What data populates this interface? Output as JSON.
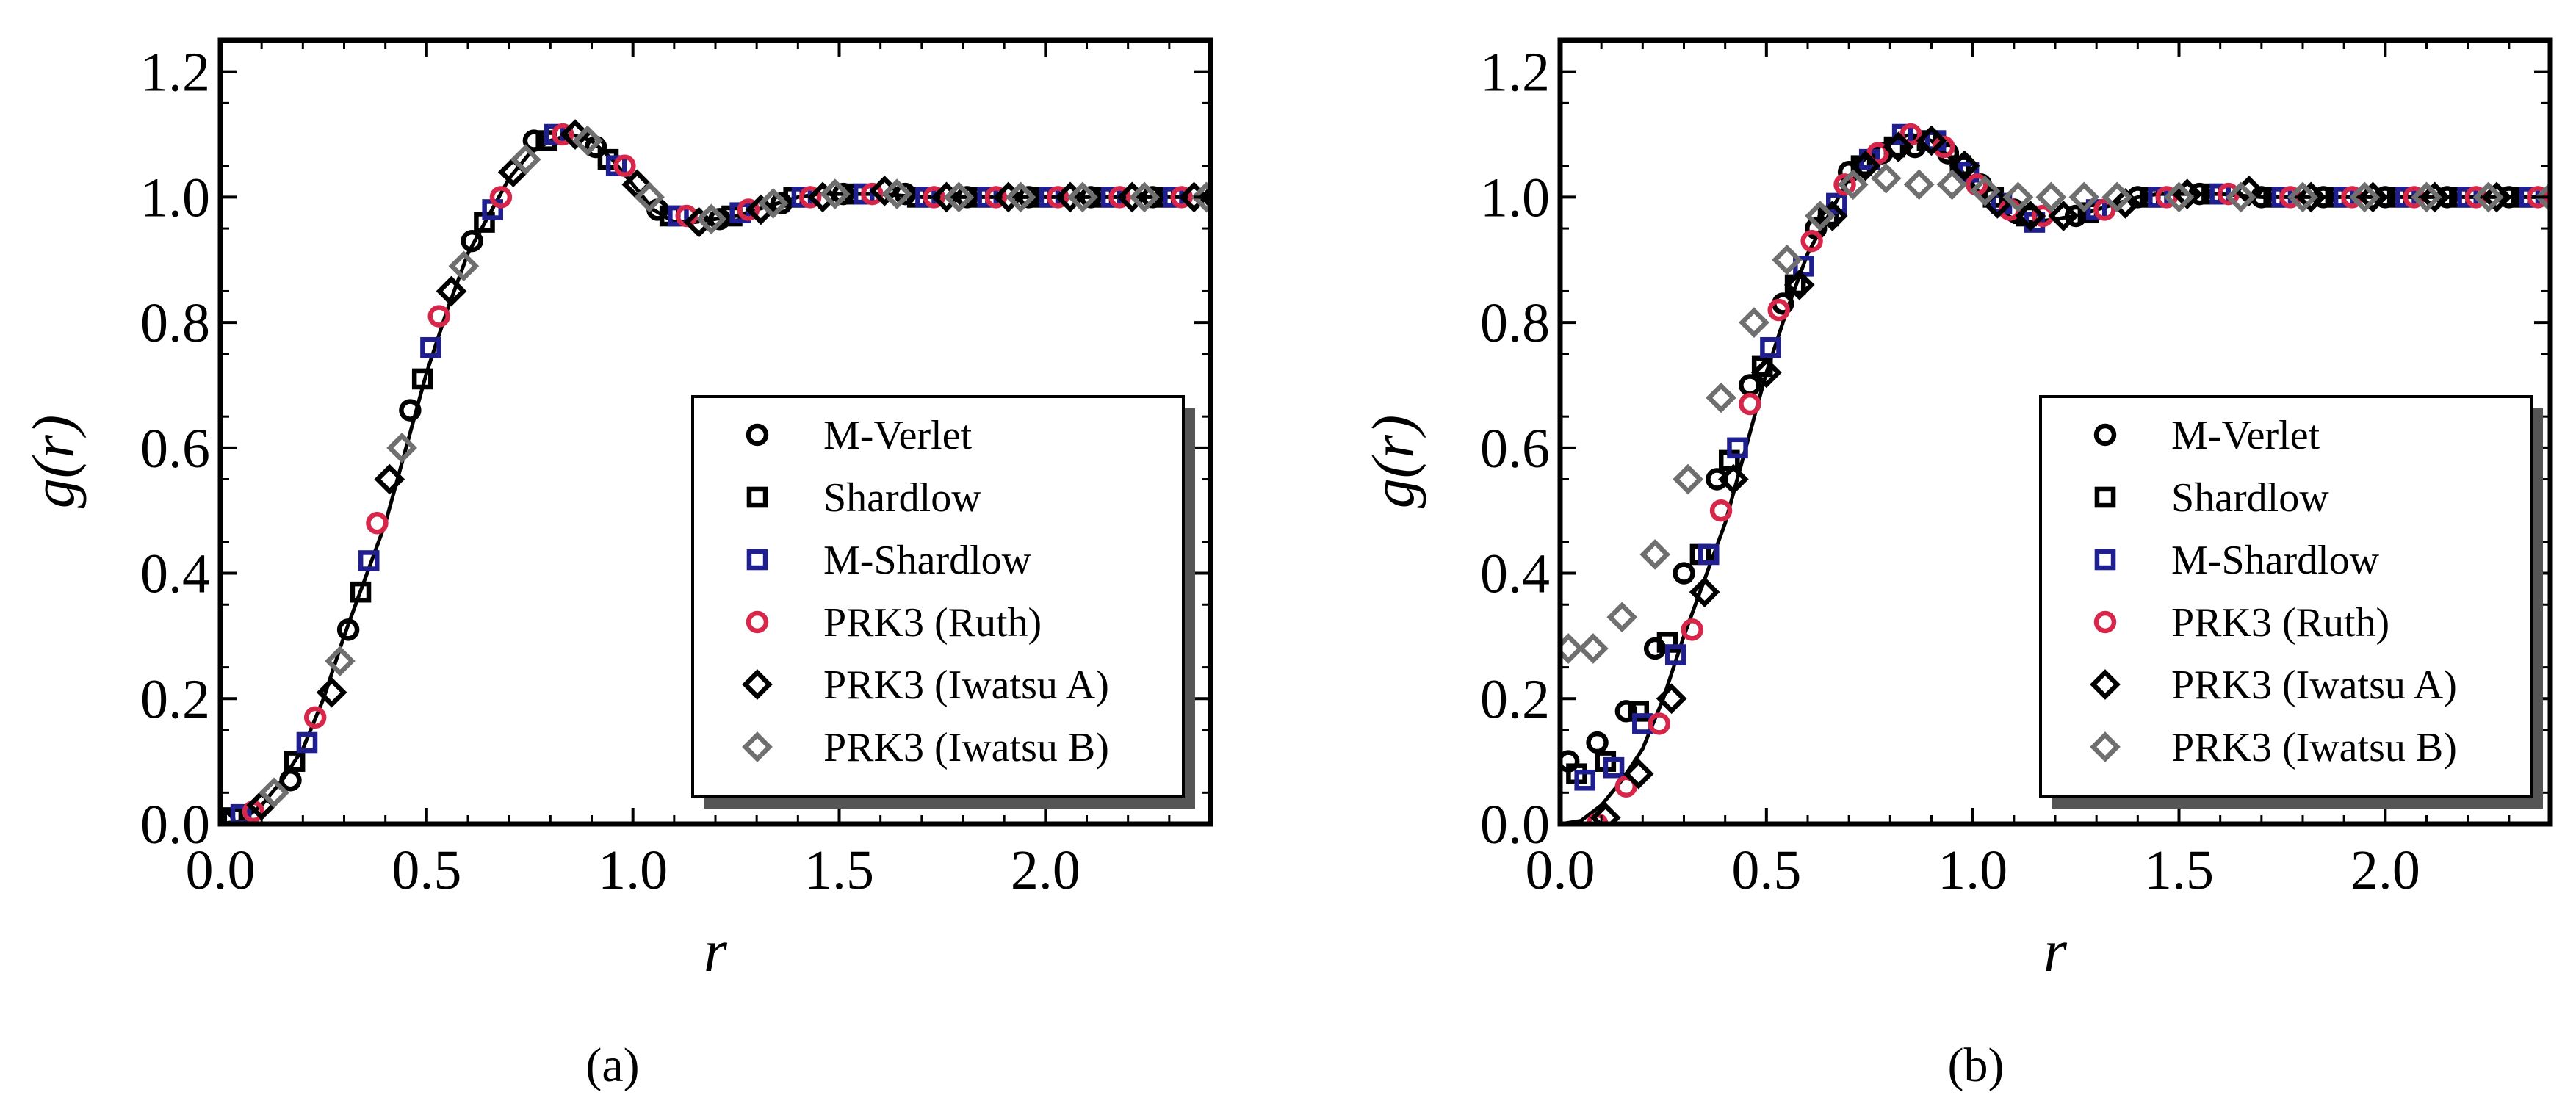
{
  "figure": {
    "captions": [
      "(a)",
      "(b)"
    ]
  },
  "chart_data": [
    {
      "type": "scatter",
      "panel": "a",
      "title": "",
      "xlabel": "r",
      "ylabel": "g(r)",
      "xlim": [
        0.0,
        2.4
      ],
      "ylim": [
        0.0,
        1.25
      ],
      "xticks": [
        0.0,
        0.5,
        1.0,
        1.5,
        2.0
      ],
      "xtick_labels": [
        "0.0",
        "0.5",
        "1.0",
        "1.5",
        "2.0"
      ],
      "yticks": [
        0.0,
        0.2,
        0.4,
        0.6,
        0.8,
        1.0,
        1.2
      ],
      "ytick_labels": [
        "0.0",
        "0.2",
        "0.4",
        "0.6",
        "0.8",
        "1.0",
        "1.2"
      ],
      "legend_position": "center-right",
      "reference_curve": {
        "name": "reference",
        "x": [
          0.0,
          0.05,
          0.1,
          0.15,
          0.2,
          0.25,
          0.3,
          0.35,
          0.4,
          0.45,
          0.5,
          0.55,
          0.6,
          0.65,
          0.7,
          0.75,
          0.8,
          0.85,
          0.9,
          0.95,
          1.0,
          1.05,
          1.1,
          1.15,
          1.2,
          1.25,
          1.3,
          1.35,
          1.4,
          1.45,
          1.5,
          1.6,
          1.7,
          1.8,
          1.9,
          2.0,
          2.1,
          2.2,
          2.3,
          2.4
        ],
        "y": [
          0.0,
          0.005,
          0.03,
          0.07,
          0.12,
          0.2,
          0.3,
          0.39,
          0.48,
          0.6,
          0.72,
          0.82,
          0.91,
          0.97,
          1.03,
          1.07,
          1.09,
          1.1,
          1.09,
          1.06,
          1.02,
          0.98,
          0.96,
          0.96,
          0.965,
          0.97,
          0.98,
          0.99,
          1.0,
          1.005,
          1.005,
          1.005,
          1.0,
          1.0,
          1.0,
          1.0,
          1.0,
          1.0,
          1.0,
          1.0
        ]
      },
      "series": [
        {
          "name": "M-Verlet",
          "marker": "circle",
          "color": "#000000",
          "x": [
            0.01,
            0.17,
            0.31,
            0.46,
            0.61,
            0.76,
            0.91,
            1.06,
            1.21,
            1.36,
            1.51,
            1.66,
            1.81,
            1.96,
            2.11,
            2.26,
            2.41
          ],
          "y": [
            0.005,
            0.07,
            0.31,
            0.66,
            0.93,
            1.09,
            1.08,
            0.98,
            0.965,
            0.99,
            1.005,
            1.005,
            1.0,
            1.0,
            1.0,
            1.0,
            1.0
          ]
        },
        {
          "name": "Shardlow",
          "marker": "square",
          "color": "#000000",
          "x": [
            0.03,
            0.18,
            0.34,
            0.49,
            0.64,
            0.79,
            0.94,
            1.09,
            1.24,
            1.39,
            1.54,
            1.69,
            1.84,
            1.99,
            2.14,
            2.29
          ],
          "y": [
            0.01,
            0.1,
            0.37,
            0.71,
            0.96,
            1.09,
            1.06,
            0.97,
            0.97,
            1.0,
            1.005,
            1.0,
            1.0,
            1.0,
            1.0,
            1.0
          ]
        },
        {
          "name": "M-Shardlow",
          "marker": "square",
          "color": "#1f1f8f",
          "x": [
            0.05,
            0.21,
            0.36,
            0.51,
            0.66,
            0.81,
            0.96,
            1.11,
            1.26,
            1.41,
            1.56,
            1.71,
            1.86,
            2.01,
            2.16,
            2.31
          ],
          "y": [
            0.015,
            0.13,
            0.42,
            0.76,
            0.98,
            1.1,
            1.05,
            0.97,
            0.975,
            1.0,
            1.005,
            1.0,
            1.0,
            1.0,
            1.0,
            1.0
          ]
        },
        {
          "name": "PRK3 (Ruth)",
          "marker": "circle",
          "color": "#d6264a",
          "x": [
            0.08,
            0.23,
            0.38,
            0.53,
            0.68,
            0.83,
            0.98,
            1.13,
            1.28,
            1.43,
            1.58,
            1.73,
            1.88,
            2.03,
            2.18,
            2.33
          ],
          "y": [
            0.02,
            0.17,
            0.48,
            0.81,
            1.0,
            1.1,
            1.05,
            0.97,
            0.98,
            1.0,
            1.005,
            1.0,
            1.0,
            1.0,
            1.0,
            1.0
          ]
        },
        {
          "name": "PRK3 (Iwatsu A)",
          "marker": "diamond",
          "color": "#000000",
          "x": [
            0.1,
            0.27,
            0.41,
            0.56,
            0.71,
            0.86,
            1.01,
            1.16,
            1.31,
            1.46,
            1.61,
            1.76,
            1.91,
            2.06,
            2.21,
            2.36
          ],
          "y": [
            0.03,
            0.21,
            0.55,
            0.85,
            1.04,
            1.1,
            1.02,
            0.96,
            0.98,
            1.0,
            1.01,
            1.0,
            1.0,
            1.0,
            1.0,
            1.0
          ]
        },
        {
          "name": "PRK3 (Iwatsu B)",
          "marker": "diamond",
          "color": "#6f6f6f",
          "x": [
            0.13,
            0.29,
            0.44,
            0.59,
            0.74,
            0.89,
            1.04,
            1.19,
            1.34,
            1.49,
            1.64,
            1.79,
            1.94,
            2.09,
            2.24,
            2.39
          ],
          "y": [
            0.05,
            0.26,
            0.6,
            0.89,
            1.06,
            1.09,
            1.0,
            0.965,
            0.99,
            1.005,
            1.005,
            1.0,
            1.0,
            1.0,
            1.0,
            1.0
          ]
        }
      ]
    },
    {
      "type": "scatter",
      "panel": "b",
      "title": "",
      "xlabel": "r",
      "ylabel": "g(r)",
      "xlim": [
        0.0,
        2.4
      ],
      "ylim": [
        0.0,
        1.25
      ],
      "xticks": [
        0.0,
        0.5,
        1.0,
        1.5,
        2.0
      ],
      "xtick_labels": [
        "0.0",
        "0.5",
        "1.0",
        "1.5",
        "2.0"
      ],
      "yticks": [
        0.0,
        0.2,
        0.4,
        0.6,
        0.8,
        1.0,
        1.2
      ],
      "ytick_labels": [
        "0.0",
        "0.2",
        "0.4",
        "0.6",
        "0.8",
        "1.0",
        "1.2"
      ],
      "legend_position": "center-right",
      "reference_curve": {
        "name": "reference",
        "x": [
          0.0,
          0.05,
          0.1,
          0.15,
          0.2,
          0.25,
          0.3,
          0.35,
          0.4,
          0.45,
          0.5,
          0.55,
          0.6,
          0.65,
          0.7,
          0.75,
          0.8,
          0.85,
          0.9,
          0.95,
          1.0,
          1.05,
          1.1,
          1.15,
          1.2,
          1.25,
          1.3,
          1.35,
          1.4,
          1.45,
          1.5,
          1.6,
          1.7,
          1.8,
          1.9,
          2.0,
          2.1,
          2.2,
          2.3,
          2.4
        ],
        "y": [
          0.0,
          0.005,
          0.03,
          0.07,
          0.12,
          0.2,
          0.3,
          0.39,
          0.48,
          0.6,
          0.72,
          0.82,
          0.91,
          0.97,
          1.03,
          1.07,
          1.09,
          1.1,
          1.09,
          1.06,
          1.02,
          0.98,
          0.96,
          0.96,
          0.965,
          0.97,
          0.98,
          0.99,
          1.0,
          1.005,
          1.005,
          1.005,
          1.0,
          1.0,
          1.0,
          1.0,
          1.0,
          1.0,
          1.0,
          1.0
        ]
      },
      "series": [
        {
          "name": "M-Verlet",
          "marker": "circle",
          "color": "#000000",
          "x": [
            0.02,
            0.09,
            0.16,
            0.23,
            0.3,
            0.38,
            0.46,
            0.54,
            0.62,
            0.7,
            0.78,
            0.86,
            0.94,
            1.02,
            1.1,
            1.25,
            1.4,
            1.55,
            1.7,
            1.85,
            2.0,
            2.15,
            2.3
          ],
          "y": [
            0.1,
            0.13,
            0.18,
            0.28,
            0.4,
            0.55,
            0.7,
            0.83,
            0.95,
            1.04,
            1.07,
            1.08,
            1.07,
            1.02,
            0.98,
            0.97,
            1.0,
            1.005,
            1.0,
            1.0,
            1.0,
            1.0,
            1.0
          ]
        },
        {
          "name": "Shardlow",
          "marker": "square",
          "color": "#000000",
          "x": [
            0.04,
            0.11,
            0.19,
            0.26,
            0.34,
            0.41,
            0.49,
            0.57,
            0.65,
            0.73,
            0.81,
            0.89,
            0.97,
            1.05,
            1.13,
            1.28,
            1.43,
            1.58,
            1.73,
            1.88,
            2.03,
            2.18,
            2.33
          ],
          "y": [
            0.08,
            0.1,
            0.18,
            0.29,
            0.43,
            0.58,
            0.73,
            0.86,
            0.97,
            1.05,
            1.08,
            1.09,
            1.05,
            1.0,
            0.97,
            0.975,
            1.0,
            1.005,
            1.0,
            1.0,
            1.0,
            1.0,
            1.0
          ]
        },
        {
          "name": "M-Shardlow",
          "marker": "square",
          "color": "#1f1f8f",
          "x": [
            0.06,
            0.13,
            0.2,
            0.28,
            0.36,
            0.43,
            0.51,
            0.59,
            0.67,
            0.75,
            0.83,
            0.91,
            0.99,
            1.07,
            1.15,
            1.3,
            1.45,
            1.6,
            1.75,
            1.9,
            2.05,
            2.2,
            2.35
          ],
          "y": [
            0.07,
            0.09,
            0.16,
            0.27,
            0.43,
            0.6,
            0.76,
            0.89,
            0.99,
            1.06,
            1.1,
            1.09,
            1.04,
            0.99,
            0.96,
            0.98,
            1.0,
            1.005,
            1.0,
            1.0,
            1.0,
            1.0,
            1.0
          ]
        },
        {
          "name": "PRK3 (Ruth)",
          "marker": "circle",
          "color": "#d6264a",
          "x": [
            0.09,
            0.16,
            0.24,
            0.32,
            0.39,
            0.46,
            0.53,
            0.61,
            0.69,
            0.77,
            0.85,
            0.93,
            1.01,
            1.09,
            1.17,
            1.32,
            1.47,
            1.62,
            1.77,
            1.92,
            2.07,
            2.22,
            2.37
          ],
          "y": [
            0.0,
            0.06,
            0.16,
            0.31,
            0.5,
            0.67,
            0.82,
            0.93,
            1.02,
            1.07,
            1.1,
            1.08,
            1.02,
            0.98,
            0.97,
            0.98,
            1.0,
            1.005,
            1.0,
            1.0,
            1.0,
            1.0,
            1.0
          ]
        },
        {
          "name": "PRK3 (Iwatsu A)",
          "marker": "diamond",
          "color": "#000000",
          "x": [
            0.11,
            0.19,
            0.27,
            0.35,
            0.42,
            0.5,
            0.58,
            0.66,
            0.74,
            0.82,
            0.9,
            0.98,
            1.06,
            1.14,
            1.22,
            1.37,
            1.52,
            1.67,
            1.82,
            1.97,
            2.12,
            2.27
          ],
          "y": [
            0.01,
            0.08,
            0.2,
            0.37,
            0.55,
            0.72,
            0.86,
            0.97,
            1.05,
            1.08,
            1.09,
            1.05,
            0.99,
            0.97,
            0.97,
            0.99,
            1.005,
            1.01,
            1.0,
            1.0,
            1.0,
            1.0
          ]
        },
        {
          "name": "PRK3 (Iwatsu B)",
          "marker": "diamond",
          "color": "#6f6f6f",
          "x": [
            0.02,
            0.08,
            0.15,
            0.23,
            0.31,
            0.39,
            0.47,
            0.55,
            0.63,
            0.71,
            0.79,
            0.87,
            0.95,
            1.03,
            1.11,
            1.19,
            1.27,
            1.35,
            1.5,
            1.65,
            1.8,
            1.95,
            2.1,
            2.25,
            2.4
          ],
          "y": [
            0.28,
            0.28,
            0.33,
            0.43,
            0.55,
            0.68,
            0.8,
            0.9,
            0.97,
            1.02,
            1.03,
            1.02,
            1.02,
            1.01,
            1.0,
            1.0,
            1.0,
            1.0,
            1.0,
            1.0,
            1.0,
            1.0,
            1.0,
            1.0,
            1.0
          ]
        }
      ]
    }
  ]
}
